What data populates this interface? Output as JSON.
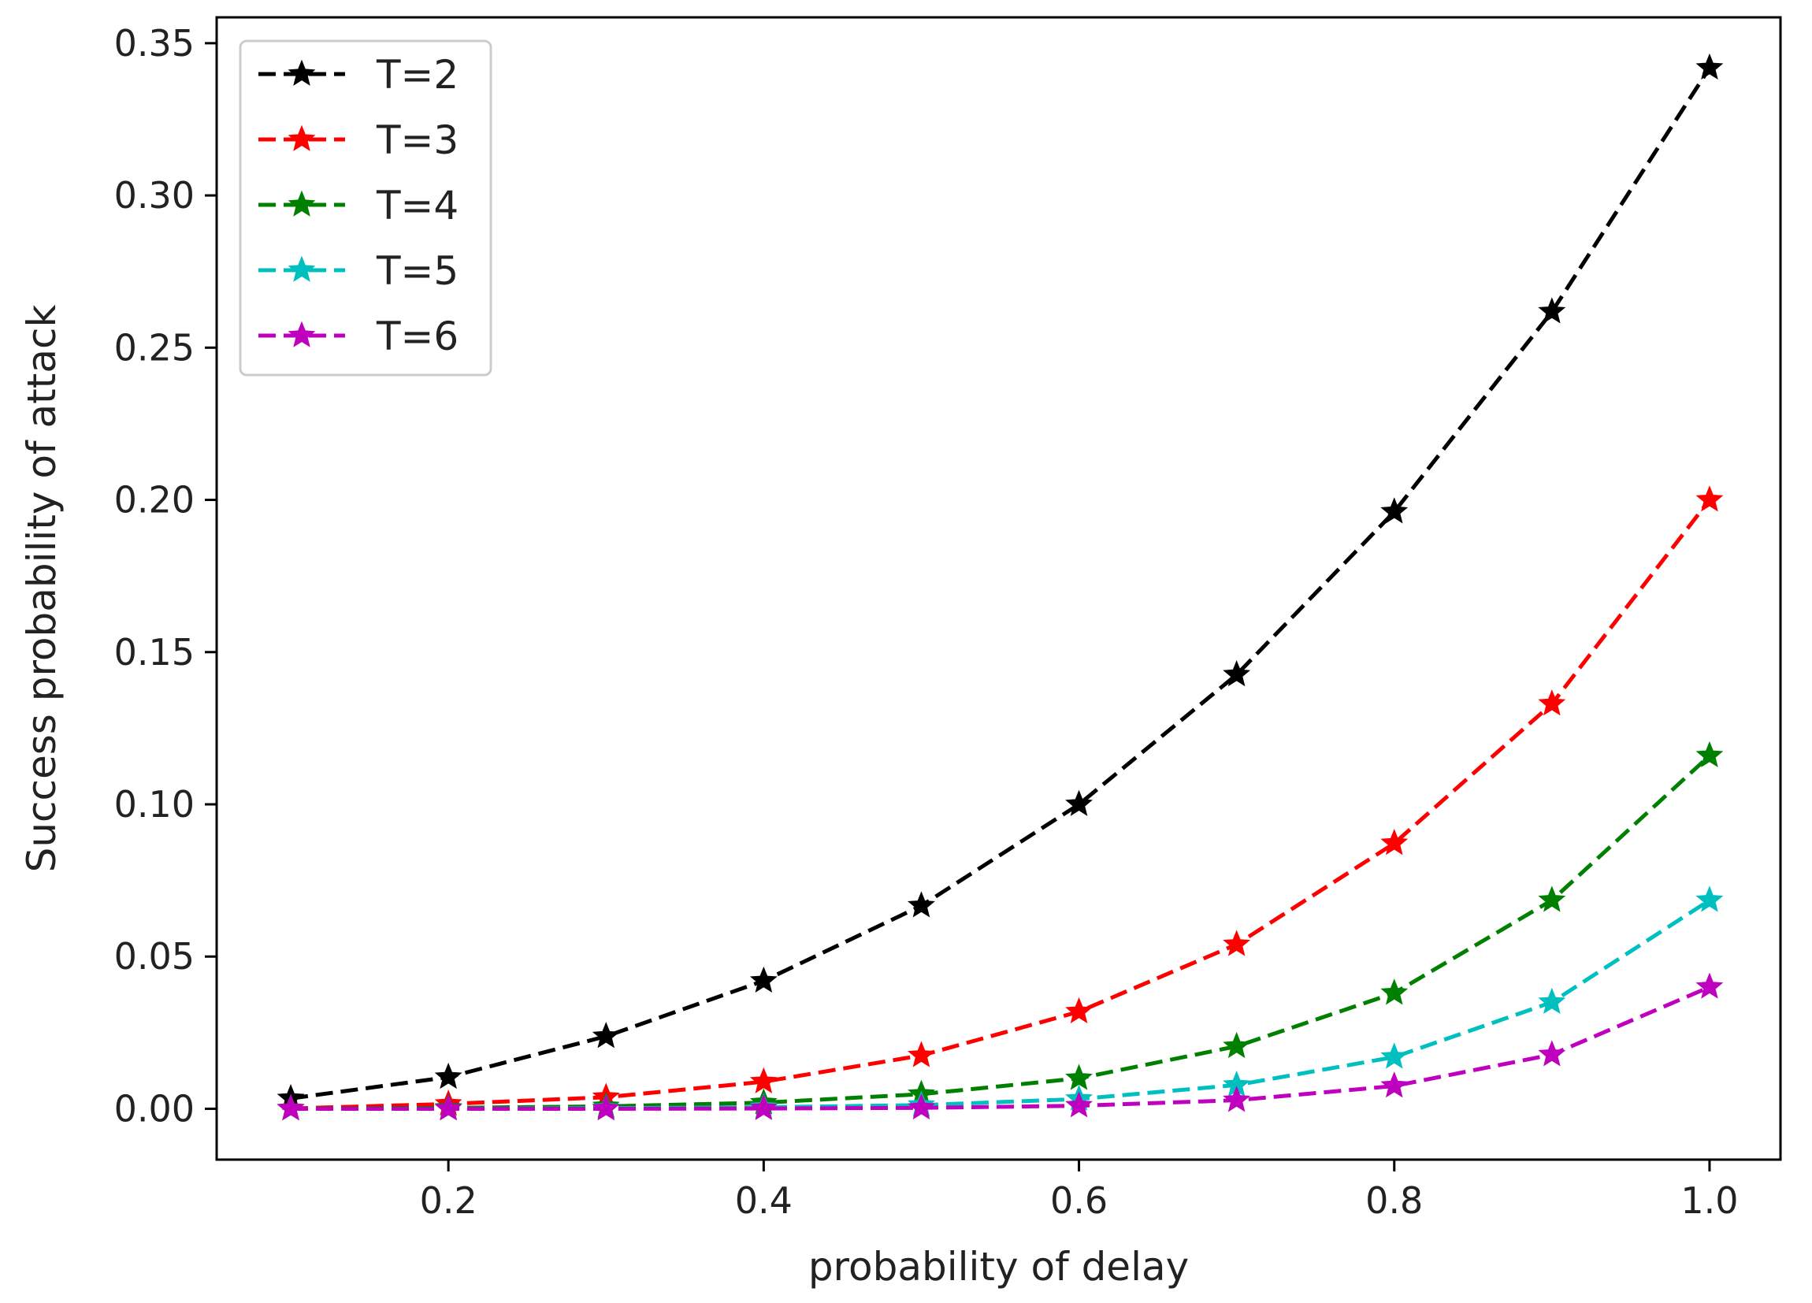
{
  "chart_data": {
    "type": "line",
    "title": "",
    "xlabel": "probability of delay",
    "ylabel": "Success probability of attack",
    "xlim": [
      0.053,
      1.045
    ],
    "ylim": [
      -0.0167,
      0.3585
    ],
    "xticks": [
      0.2,
      0.4,
      0.6,
      0.8,
      1.0
    ],
    "xtick_labels": [
      "0.2",
      "0.4",
      "0.6",
      "0.8",
      "1.0"
    ],
    "yticks": [
      0.0,
      0.05,
      0.1,
      0.15,
      0.2,
      0.25,
      0.3,
      0.35
    ],
    "ytick_labels": [
      "0.00",
      "0.05",
      "0.10",
      "0.15",
      "0.20",
      "0.25",
      "0.30",
      "0.35"
    ],
    "grid": false,
    "legend_position": "top-left",
    "line_style": "dashed",
    "marker": "star",
    "x": [
      0.1,
      0.2,
      0.3,
      0.4,
      0.5,
      0.6,
      0.7,
      0.8,
      0.9,
      1.0
    ],
    "series": [
      {
        "name": "T=2",
        "color": "#000000",
        "values": [
          0.0034,
          0.0104,
          0.0238,
          0.042,
          0.0667,
          0.1,
          0.1426,
          0.1961,
          0.2618,
          0.3419
        ]
      },
      {
        "name": "T=3",
        "color": "#ff0000",
        "values": [
          0.0001,
          0.0016,
          0.0038,
          0.0089,
          0.0175,
          0.0319,
          0.054,
          0.0872,
          0.133,
          0.2
        ]
      },
      {
        "name": "T=4",
        "color": "#008000",
        "values": [
          0.0,
          0.0003,
          0.0008,
          0.002,
          0.0048,
          0.01,
          0.0205,
          0.038,
          0.0685,
          0.116
        ]
      },
      {
        "name": "T=5",
        "color": "#00bfbf",
        "values": [
          0.0,
          0.0,
          0.0002,
          0.0005,
          0.0012,
          0.0032,
          0.0078,
          0.017,
          0.035,
          0.0685
        ]
      },
      {
        "name": "T=6",
        "color": "#bf00bf",
        "values": [
          0.0,
          0.0,
          0.0,
          0.0001,
          0.0003,
          0.001,
          0.0028,
          0.0075,
          0.0178,
          0.04
        ]
      }
    ]
  }
}
